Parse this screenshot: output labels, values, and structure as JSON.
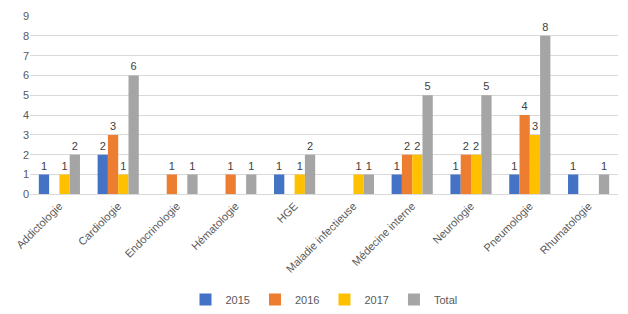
{
  "chart_data": {
    "type": "bar",
    "categories": [
      "Addictologie",
      "Cardiologie",
      "Endocrinologie",
      "Hématologie",
      "HGE",
      "Maladie infectieuse",
      "Médecine interne",
      "Neurologie",
      "Pneumologie",
      "Rhumatologie"
    ],
    "series": [
      {
        "name": "2015",
        "color": "#4472c4",
        "values": [
          1,
          2,
          null,
          null,
          1,
          null,
          1,
          1,
          1,
          1
        ]
      },
      {
        "name": "2016",
        "color": "#ed7d31",
        "values": [
          null,
          3,
          1,
          1,
          null,
          null,
          2,
          2,
          4,
          null
        ]
      },
      {
        "name": "2017",
        "color": "#ffc000",
        "values": [
          1,
          1,
          null,
          null,
          1,
          1,
          2,
          2,
          3,
          null
        ]
      },
      {
        "name": "Total",
        "color": "#a5a5a5",
        "values": [
          2,
          6,
          1,
          1,
          2,
          1,
          5,
          5,
          8,
          1
        ]
      }
    ],
    "ylim": [
      0,
      9
    ],
    "yticks": [
      0,
      1,
      2,
      3,
      4,
      5,
      6,
      7,
      8,
      9
    ],
    "grid": true,
    "data_labels": true,
    "legend": "bottom"
  }
}
